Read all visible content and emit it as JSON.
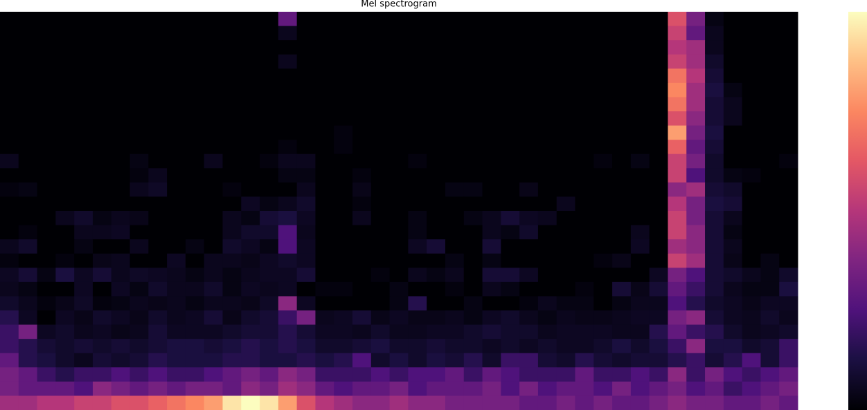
{
  "chart_data": {
    "type": "heatmap",
    "title": "Mel spectrogram",
    "colormap": "magma",
    "zlim": [
      0,
      1
    ],
    "colorbar": true,
    "values": [
      [
        0,
        0,
        0,
        0,
        0,
        0,
        0,
        0,
        0,
        0,
        0,
        0,
        0,
        0,
        0,
        0.3,
        0,
        0,
        0,
        0,
        0,
        0,
        0,
        0,
        0,
        0,
        0,
        0,
        0,
        0,
        0,
        0,
        0,
        0,
        0,
        0,
        0.6,
        0.35,
        0.03,
        0,
        0,
        0,
        0
      ],
      [
        0,
        0,
        0,
        0,
        0,
        0,
        0,
        0,
        0,
        0,
        0,
        0,
        0,
        0,
        0,
        0.05,
        0,
        0,
        0,
        0,
        0,
        0,
        0,
        0,
        0,
        0,
        0,
        0,
        0,
        0,
        0,
        0,
        0,
        0,
        0,
        0,
        0.55,
        0.3,
        0.05,
        0,
        0,
        0,
        0
      ],
      [
        0,
        0,
        0,
        0,
        0,
        0,
        0,
        0,
        0,
        0,
        0,
        0,
        0,
        0,
        0,
        0,
        0,
        0,
        0,
        0,
        0,
        0,
        0,
        0,
        0,
        0,
        0,
        0,
        0,
        0,
        0,
        0,
        0,
        0,
        0,
        0,
        0.5,
        0.45,
        0.05,
        0,
        0,
        0,
        0
      ],
      [
        0,
        0,
        0,
        0,
        0,
        0,
        0,
        0,
        0,
        0,
        0,
        0,
        0,
        0,
        0,
        0.05,
        0,
        0,
        0,
        0,
        0,
        0,
        0,
        0,
        0,
        0,
        0,
        0,
        0,
        0,
        0,
        0,
        0,
        0,
        0,
        0,
        0.55,
        0.45,
        0.08,
        0,
        0,
        0,
        0
      ],
      [
        0,
        0,
        0,
        0,
        0,
        0,
        0,
        0,
        0,
        0,
        0,
        0,
        0,
        0,
        0,
        0,
        0,
        0,
        0,
        0,
        0,
        0,
        0,
        0,
        0,
        0,
        0,
        0,
        0,
        0,
        0,
        0,
        0,
        0,
        0,
        0,
        0.7,
        0.5,
        0.1,
        0,
        0,
        0,
        0
      ],
      [
        0,
        0,
        0,
        0,
        0,
        0,
        0,
        0,
        0,
        0,
        0,
        0,
        0,
        0,
        0,
        0,
        0,
        0,
        0,
        0,
        0,
        0,
        0,
        0,
        0,
        0,
        0,
        0,
        0,
        0,
        0,
        0,
        0,
        0,
        0,
        0,
        0.75,
        0.45,
        0.12,
        0.03,
        0,
        0,
        0
      ],
      [
        0,
        0,
        0,
        0,
        0,
        0,
        0,
        0,
        0,
        0,
        0,
        0,
        0,
        0,
        0,
        0,
        0,
        0,
        0,
        0,
        0,
        0,
        0,
        0,
        0,
        0,
        0,
        0,
        0,
        0,
        0,
        0,
        0,
        0,
        0,
        0,
        0.7,
        0.45,
        0.1,
        0.05,
        0,
        0,
        0
      ],
      [
        0,
        0,
        0,
        0,
        0,
        0,
        0,
        0,
        0,
        0,
        0,
        0,
        0,
        0,
        0,
        0,
        0,
        0,
        0,
        0,
        0,
        0,
        0,
        0,
        0,
        0,
        0,
        0,
        0,
        0,
        0,
        0,
        0,
        0,
        0,
        0,
        0.6,
        0.4,
        0.1,
        0.05,
        0,
        0,
        0
      ],
      [
        0,
        0,
        0,
        0,
        0,
        0,
        0,
        0,
        0,
        0,
        0,
        0,
        0,
        0,
        0,
        0,
        0,
        0,
        0.02,
        0,
        0,
        0,
        0,
        0,
        0,
        0,
        0,
        0,
        0,
        0,
        0,
        0,
        0,
        0,
        0,
        0,
        0.8,
        0.35,
        0.12,
        0,
        0,
        0,
        0
      ],
      [
        0,
        0,
        0,
        0,
        0,
        0,
        0,
        0,
        0,
        0,
        0,
        0,
        0,
        0,
        0,
        0.02,
        0,
        0,
        0.02,
        0,
        0,
        0,
        0,
        0,
        0,
        0,
        0,
        0,
        0,
        0,
        0,
        0,
        0,
        0,
        0,
        0,
        0.65,
        0.3,
        0.1,
        0,
        0,
        0,
        0
      ],
      [
        0.05,
        0,
        0,
        0,
        0,
        0,
        0,
        0.03,
        0,
        0,
        0,
        0.05,
        0,
        0,
        0.02,
        0.05,
        0.05,
        0,
        0,
        0,
        0,
        0,
        0.02,
        0,
        0,
        0,
        0,
        0,
        0,
        0,
        0,
        0,
        0.02,
        0,
        0.03,
        0,
        0.55,
        0.35,
        0.08,
        0,
        0,
        0,
        0.02
      ],
      [
        0,
        0,
        0,
        0,
        0,
        0,
        0,
        0.02,
        0.05,
        0,
        0,
        0,
        0,
        0,
        0,
        0.03,
        0.03,
        0,
        0,
        0.02,
        0,
        0,
        0,
        0,
        0,
        0,
        0,
        0,
        0,
        0,
        0,
        0,
        0,
        0,
        0,
        0,
        0.55,
        0.25,
        0.08,
        0.03,
        0.02,
        0,
        0
      ],
      [
        0.02,
        0.03,
        0,
        0,
        0,
        0,
        0,
        0.05,
        0.07,
        0,
        0,
        0,
        0.02,
        0,
        0,
        0,
        0.05,
        0,
        0,
        0.04,
        0,
        0,
        0,
        0,
        0.03,
        0.03,
        0,
        0,
        0.04,
        0,
        0,
        0,
        0,
        0,
        0,
        0,
        0.4,
        0.45,
        0.1,
        0.08,
        0,
        0,
        0
      ],
      [
        0,
        0,
        0,
        0,
        0,
        0,
        0,
        0,
        0,
        0,
        0,
        0,
        0,
        0.06,
        0.03,
        0.05,
        0.08,
        0,
        0,
        0.02,
        0,
        0,
        0,
        0,
        0,
        0,
        0,
        0,
        0,
        0,
        0.05,
        0,
        0,
        0,
        0,
        0,
        0.5,
        0.35,
        0.12,
        0.1,
        0,
        0,
        0
      ],
      [
        0,
        0,
        0,
        0.05,
        0.08,
        0.03,
        0.05,
        0.04,
        0,
        0,
        0,
        0,
        0.05,
        0.03,
        0.1,
        0.12,
        0.06,
        0,
        0,
        0.05,
        0,
        0,
        0.03,
        0,
        0,
        0.03,
        0.05,
        0.1,
        0.06,
        0.05,
        0,
        0,
        0,
        0,
        0,
        0,
        0.55,
        0.35,
        0.1,
        0.05,
        0,
        0,
        0
      ],
      [
        0,
        0.02,
        0,
        0,
        0.05,
        0.05,
        0.06,
        0,
        0,
        0,
        0,
        0,
        0.05,
        0.08,
        0.08,
        0.25,
        0.05,
        0,
        0,
        0,
        0,
        0,
        0.03,
        0,
        0,
        0,
        0.05,
        0.03,
        0.08,
        0,
        0,
        0,
        0,
        0,
        0.05,
        0,
        0.55,
        0.4,
        0.1,
        0.03,
        0,
        0,
        0
      ],
      [
        0.05,
        0.08,
        0,
        0,
        0.03,
        0,
        0,
        0.05,
        0,
        0,
        0.03,
        0,
        0.08,
        0.06,
        0.03,
        0.25,
        0.06,
        0,
        0,
        0,
        0,
        0,
        0.06,
        0.1,
        0,
        0,
        0.1,
        0,
        0,
        0,
        0,
        0,
        0,
        0,
        0.06,
        0,
        0.45,
        0.4,
        0.1,
        0.05,
        0,
        0,
        0
      ],
      [
        0.02,
        0,
        0,
        0.02,
        0,
        0.04,
        0.05,
        0,
        0,
        0.06,
        0,
        0.05,
        0.05,
        0.04,
        0.06,
        0.08,
        0.06,
        0,
        0,
        0,
        0,
        0,
        0,
        0,
        0.03,
        0,
        0.03,
        0,
        0,
        0,
        0,
        0,
        0.02,
        0.04,
        0,
        0,
        0.55,
        0.45,
        0.1,
        0.04,
        0,
        0.03,
        0
      ],
      [
        0.06,
        0.1,
        0.03,
        0.12,
        0.06,
        0.1,
        0.05,
        0.07,
        0.06,
        0.05,
        0.03,
        0.05,
        0.03,
        0.05,
        0.06,
        0.06,
        0.1,
        0,
        0,
        0,
        0.02,
        0,
        0.05,
        0.03,
        0.05,
        0,
        0.1,
        0.1,
        0.06,
        0,
        0,
        0,
        0,
        0,
        0,
        0.06,
        0.35,
        0.25,
        0.1,
        0.08,
        0.05,
        0.03,
        0.08
      ],
      [
        0.05,
        0.03,
        0,
        0,
        0.06,
        0,
        0.06,
        0.03,
        0.08,
        0.05,
        0.05,
        0.08,
        0.03,
        0.06,
        0.05,
        0.06,
        0,
        0.02,
        0.02,
        0,
        0,
        0.03,
        0,
        0,
        0.02,
        0,
        0.05,
        0.03,
        0,
        0,
        0,
        0.02,
        0,
        0.1,
        0.04,
        0.1,
        0.3,
        0.2,
        0.1,
        0.05,
        0.03,
        0.03,
        0.12
      ],
      [
        0.08,
        0.05,
        0.02,
        0.04,
        0.07,
        0.02,
        0.03,
        0.05,
        0.04,
        0.05,
        0.03,
        0.05,
        0.05,
        0.04,
        0.07,
        0.4,
        0.06,
        0,
        0,
        0,
        0,
        0.03,
        0.15,
        0,
        0,
        0.03,
        0,
        0,
        0.02,
        0.05,
        0.03,
        0.03,
        0,
        0.03,
        0.05,
        0.05,
        0.25,
        0.15,
        0.08,
        0.06,
        0.04,
        0.06,
        0.06
      ],
      [
        0.15,
        0.06,
        0,
        0.06,
        0.04,
        0.08,
        0.06,
        0.04,
        0.08,
        0.05,
        0.06,
        0.1,
        0.04,
        0.08,
        0.1,
        0.2,
        0.35,
        0.05,
        0.06,
        0.1,
        0.04,
        0.06,
        0.04,
        0.04,
        0.05,
        0.03,
        0.06,
        0.08,
        0.05,
        0.03,
        0.05,
        0.04,
        0.04,
        0.05,
        0.06,
        0.06,
        0.35,
        0.4,
        0.1,
        0.06,
        0.05,
        0.08,
        0.05
      ],
      [
        0.2,
        0.35,
        0.06,
        0.08,
        0.05,
        0.06,
        0.04,
        0.05,
        0.1,
        0.06,
        0.06,
        0.06,
        0.08,
        0.1,
        0.1,
        0.15,
        0.1,
        0.06,
        0.06,
        0.05,
        0.08,
        0.05,
        0.05,
        0.06,
        0.06,
        0.08,
        0.1,
        0.08,
        0.08,
        0.05,
        0.06,
        0.06,
        0.06,
        0.05,
        0.05,
        0.15,
        0.3,
        0.2,
        0.15,
        0.08,
        0.05,
        0.06,
        0.08
      ],
      [
        0.2,
        0.15,
        0.1,
        0.08,
        0.1,
        0.08,
        0.1,
        0.08,
        0.1,
        0.12,
        0.12,
        0.1,
        0.12,
        0.15,
        0.12,
        0.15,
        0.12,
        0.08,
        0.08,
        0.1,
        0.12,
        0.08,
        0.08,
        0.1,
        0.08,
        0.08,
        0.06,
        0.08,
        0.06,
        0.08,
        0.06,
        0.06,
        0.08,
        0.12,
        0.08,
        0.12,
        0.2,
        0.4,
        0.12,
        0.12,
        0.08,
        0.1,
        0.2
      ],
      [
        0.3,
        0.15,
        0.12,
        0.08,
        0.05,
        0.1,
        0.08,
        0.1,
        0.15,
        0.12,
        0.12,
        0.12,
        0.15,
        0.15,
        0.12,
        0.12,
        0.15,
        0.12,
        0.15,
        0.25,
        0.08,
        0.12,
        0.08,
        0.12,
        0.1,
        0.15,
        0.08,
        0.2,
        0.2,
        0.1,
        0.08,
        0.15,
        0.1,
        0.08,
        0.1,
        0.1,
        0.15,
        0.2,
        0.1,
        0.15,
        0.25,
        0.1,
        0.2
      ],
      [
        0.35,
        0.3,
        0.2,
        0.15,
        0.2,
        0.2,
        0.25,
        0.2,
        0.25,
        0.2,
        0.2,
        0.25,
        0.3,
        0.35,
        0.3,
        0.4,
        0.35,
        0.2,
        0.2,
        0.2,
        0.25,
        0.2,
        0.25,
        0.25,
        0.3,
        0.2,
        0.3,
        0.25,
        0.2,
        0.2,
        0.2,
        0.3,
        0.2,
        0.2,
        0.25,
        0.2,
        0.4,
        0.2,
        0.35,
        0.25,
        0.2,
        0.25,
        0.3
      ],
      [
        0.35,
        0.3,
        0.3,
        0.3,
        0.25,
        0.4,
        0.35,
        0.3,
        0.35,
        0.3,
        0.35,
        0.35,
        0.3,
        0.4,
        0.35,
        0.45,
        0.4,
        0.3,
        0.25,
        0.3,
        0.3,
        0.35,
        0.25,
        0.3,
        0.3,
        0.3,
        0.35,
        0.25,
        0.35,
        0.25,
        0.3,
        0.3,
        0.25,
        0.35,
        0.25,
        0.3,
        0.35,
        0.25,
        0.3,
        0.2,
        0.25,
        0.3,
        0.35
      ],
      [
        0.45,
        0.45,
        0.5,
        0.5,
        0.55,
        0.55,
        0.6,
        0.6,
        0.65,
        0.7,
        0.75,
        0.8,
        0.95,
        1,
        0.95,
        0.8,
        0.6,
        0.5,
        0.45,
        0.4,
        0.4,
        0.45,
        0.4,
        0.4,
        0.35,
        0.35,
        0.35,
        0.35,
        0.3,
        0.3,
        0.35,
        0.3,
        0.35,
        0.3,
        0.3,
        0.35,
        0.4,
        0.35,
        0.35,
        0.3,
        0.3,
        0.35,
        0.3
      ]
    ]
  }
}
